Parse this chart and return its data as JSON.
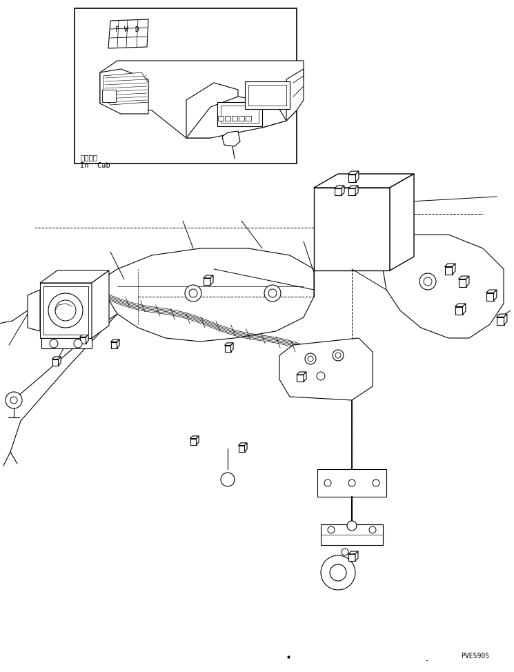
{
  "fig_width": 7.45,
  "fig_height": 9.74,
  "dpi": 100,
  "bg_color": "#ffffff",
  "line_color": "#000000",
  "lw": 0.8,
  "title_code": "PVE5905",
  "inset_label_jp": "キャブ内",
  "inset_label_en": "In  Cab"
}
